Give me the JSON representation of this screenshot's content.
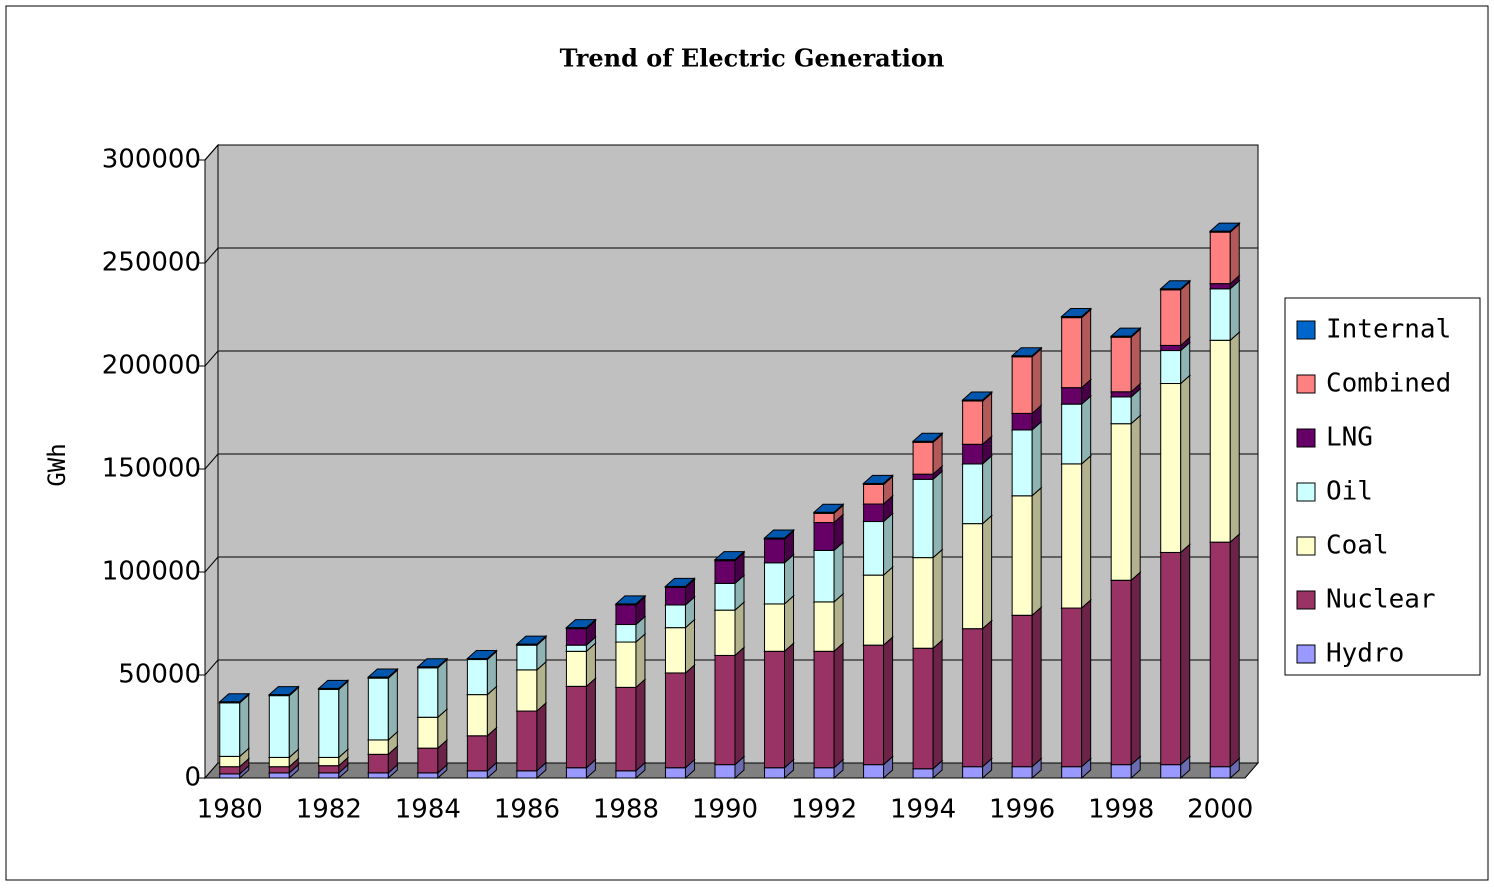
{
  "chart_data": {
    "type": "bar3d_stacked",
    "title": "Trend of Electric Generation",
    "y_label": "GWh",
    "categories": [
      "1980",
      null,
      "1982",
      null,
      "1984",
      null,
      "1986",
      null,
      "1988",
      null,
      "1990",
      null,
      "1992",
      null,
      "1994",
      null,
      "1996",
      null,
      "1998",
      null,
      "2000"
    ],
    "series": [
      {
        "name": "Hydro",
        "color": "#9999ff",
        "values": [
          2000,
          2500,
          2500,
          2500,
          2500,
          3500,
          3500,
          5000,
          3500,
          5000,
          6500,
          5000,
          5000,
          6500,
          4500,
          5500,
          5500,
          5500,
          6500,
          6500,
          5500
        ]
      },
      {
        "name": "Nuclear",
        "color": "#993366",
        "values": [
          3500,
          3000,
          3500,
          9000,
          12000,
          17000,
          29000,
          39500,
          40500,
          46000,
          53000,
          56500,
          56500,
          58000,
          58500,
          67000,
          73500,
          77000,
          89500,
          103000,
          109000
        ]
      },
      {
        "name": "Coal",
        "color": "#ffffcc",
        "values": [
          5000,
          4500,
          4000,
          7000,
          15000,
          20000,
          20000,
          17000,
          22000,
          22000,
          22000,
          23000,
          24000,
          34000,
          44000,
          51000,
          58000,
          70000,
          76000,
          82000,
          98000
        ]
      },
      {
        "name": "Oil",
        "color": "#ccffff",
        "values": [
          26000,
          30000,
          33000,
          30000,
          24000,
          17000,
          12000,
          3000,
          8500,
          11000,
          13000,
          20000,
          25000,
          26000,
          38000,
          29000,
          32000,
          29000,
          13000,
          16000,
          25000
        ]
      },
      {
        "name": "LNG",
        "color": "#660066",
        "values": [
          0,
          0,
          0,
          0,
          0,
          0,
          0,
          8000,
          9500,
          8500,
          11000,
          11500,
          13500,
          8500,
          2500,
          9500,
          8000,
          8000,
          2500,
          2500,
          2500
        ]
      },
      {
        "name": "Combined",
        "color": "#ff8080",
        "values": [
          0,
          0,
          0,
          0,
          0,
          0,
          0,
          0,
          0,
          0,
          0,
          0,
          4500,
          9500,
          15500,
          21000,
          27500,
          34000,
          26500,
          27000,
          25000
        ]
      },
      {
        "name": "Internal",
        "color": "#0066cc",
        "values": [
          500,
          500,
          500,
          500,
          500,
          500,
          500,
          500,
          500,
          500,
          500,
          500,
          500,
          500,
          500,
          500,
          500,
          500,
          500,
          500,
          500
        ]
      }
    ],
    "ylim": [
      0,
      300000
    ],
    "yticks": [
      0,
      50000,
      100000,
      150000,
      200000,
      250000,
      300000
    ],
    "grid": true
  }
}
